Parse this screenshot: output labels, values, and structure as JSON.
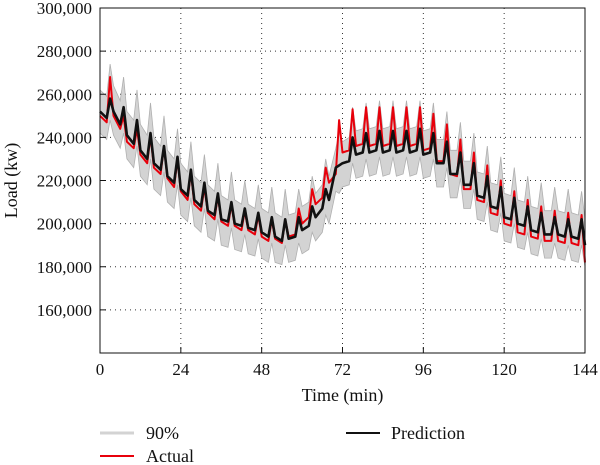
{
  "chart_data": {
    "type": "line",
    "xlabel": "Time (min)",
    "ylabel": "Load (kw)",
    "xlim": [
      0,
      144
    ],
    "ylim": [
      140000,
      300000
    ],
    "x_ticks": [
      0,
      24,
      48,
      72,
      96,
      120,
      144
    ],
    "x_tick_labels": [
      "0",
      "24",
      "48",
      "72",
      "96",
      "120",
      "144"
    ],
    "y_ticks": [
      160000,
      180000,
      200000,
      220000,
      240000,
      260000,
      280000,
      300000
    ],
    "y_tick_labels": [
      "160,000",
      "180,000",
      "200,000",
      "220,000",
      "240,000",
      "260,000",
      "280,000",
      "300,000"
    ],
    "grid": {
      "vertical": true,
      "horizontal": true,
      "style": "dotted"
    },
    "legend_position": "bottom",
    "x": [
      0,
      2,
      3,
      4,
      6,
      7,
      8,
      10,
      11,
      12,
      14,
      15,
      16,
      18,
      19,
      20,
      22,
      23,
      24,
      26,
      27,
      28,
      30,
      31,
      32,
      34,
      35,
      36,
      38,
      39,
      40,
      42,
      43,
      44,
      46,
      47,
      48,
      50,
      51,
      52,
      54,
      55,
      56,
      58,
      59,
      60,
      62,
      63,
      64,
      66,
      67,
      68,
      70,
      71,
      72,
      74,
      75,
      76,
      78,
      79,
      80,
      82,
      83,
      84,
      86,
      87,
      88,
      90,
      91,
      92,
      94,
      95,
      96,
      98,
      99,
      100,
      102,
      103,
      104,
      106,
      107,
      108,
      110,
      111,
      112,
      114,
      115,
      116,
      118,
      119,
      120,
      122,
      123,
      124,
      126,
      127,
      128,
      130,
      131,
      132,
      134,
      135,
      136,
      138,
      139,
      140,
      142,
      143,
      144
    ],
    "series": [
      {
        "name": "Actual",
        "color": "#e8000b",
        "values": [
          250000,
          247000,
          268000,
          250000,
          244000,
          250000,
          238000,
          235000,
          244000,
          232000,
          228000,
          241000,
          226000,
          223000,
          236000,
          221000,
          217000,
          230000,
          215000,
          211000,
          224000,
          209000,
          206000,
          217000,
          205000,
          202000,
          213000,
          201000,
          199000,
          209000,
          199000,
          197000,
          206000,
          197000,
          195000,
          204000,
          194000,
          192000,
          202000,
          193000,
          191000,
          202000,
          194000,
          195000,
          207000,
          200000,
          203000,
          216000,
          209000,
          212000,
          226000,
          219000,
          223000,
          248000,
          233000,
          234000,
          253000,
          236000,
          237000,
          254000,
          236000,
          237000,
          254000,
          236000,
          237000,
          254000,
          236000,
          237000,
          254000,
          236000,
          237000,
          254000,
          234000,
          235000,
          251000,
          229000,
          229000,
          246000,
          223000,
          222000,
          239000,
          216000,
          216000,
          233000,
          211000,
          210000,
          227000,
          205000,
          204000,
          220000,
          200000,
          199000,
          215000,
          196000,
          195000,
          211000,
          194000,
          193000,
          208000,
          192000,
          192000,
          206000,
          192000,
          191000,
          205000,
          191000,
          190000,
          204000,
          182000
        ]
      },
      {
        "name": "Prediction",
        "color": "#111111",
        "values": [
          252000,
          249000,
          258000,
          252000,
          246000,
          254000,
          241000,
          237000,
          248000,
          234000,
          230000,
          242000,
          228000,
          225000,
          236000,
          222000,
          219000,
          231000,
          216000,
          213000,
          225000,
          211000,
          208000,
          219000,
          206000,
          204000,
          214000,
          202000,
          201000,
          210000,
          200000,
          199000,
          207000,
          198000,
          197000,
          205000,
          196000,
          194000,
          203000,
          194000,
          192000,
          202000,
          193000,
          194000,
          203000,
          197000,
          199000,
          208000,
          203000,
          207000,
          216000,
          211000,
          226000,
          227000,
          228000,
          229000,
          240000,
          232000,
          233000,
          242000,
          233000,
          234000,
          243000,
          233000,
          234000,
          243000,
          233000,
          234000,
          243000,
          233000,
          234000,
          244000,
          232000,
          233000,
          242000,
          228000,
          228000,
          238000,
          223000,
          223000,
          233000,
          218000,
          218000,
          228000,
          213000,
          212000,
          222000,
          208000,
          207000,
          217000,
          203000,
          202000,
          212000,
          200000,
          199000,
          208000,
          197000,
          196000,
          205000,
          195000,
          195000,
          203000,
          195000,
          194000,
          202000,
          194000,
          193000,
          202000,
          190000
        ]
      }
    ],
    "band": {
      "name": "90%",
      "color": "#d3d3d3",
      "upper": [
        262000,
        259000,
        274000,
        264000,
        257000,
        268000,
        252000,
        248000,
        262000,
        246000,
        241000,
        256000,
        240000,
        236000,
        250000,
        234000,
        230000,
        244000,
        228000,
        224000,
        238000,
        222000,
        219000,
        232000,
        218000,
        215000,
        228000,
        213000,
        211000,
        224000,
        211000,
        209000,
        220000,
        209000,
        207000,
        218000,
        207000,
        205000,
        217000,
        205000,
        203000,
        216000,
        204000,
        205000,
        216000,
        208000,
        210000,
        222000,
        214000,
        218000,
        230000,
        222000,
        235000,
        242000,
        238000,
        240000,
        254000,
        243000,
        244000,
        256000,
        244000,
        245000,
        257000,
        244000,
        245000,
        257000,
        244000,
        245000,
        257000,
        244000,
        245000,
        257000,
        243000,
        244000,
        256000,
        239000,
        239000,
        252000,
        234000,
        234000,
        247000,
        229000,
        229000,
        242000,
        224000,
        223000,
        236000,
        219000,
        218000,
        231000,
        214000,
        213000,
        226000,
        211000,
        210000,
        222000,
        208000,
        207000,
        219000,
        206000,
        206000,
        217000,
        206000,
        205000,
        216000,
        205000,
        204000,
        215000,
        202000
      ],
      "lower": [
        242000,
        239000,
        248000,
        241000,
        235000,
        242000,
        230000,
        226000,
        236000,
        222000,
        218000,
        230000,
        216000,
        213000,
        224000,
        210000,
        207000,
        218000,
        204000,
        201000,
        212000,
        199000,
        196000,
        207000,
        194000,
        192000,
        202000,
        190000,
        189000,
        198000,
        188000,
        187000,
        195000,
        186000,
        185000,
        193000,
        184000,
        182000,
        191000,
        182000,
        181000,
        190000,
        182000,
        183000,
        191000,
        186000,
        188000,
        196000,
        192000,
        196000,
        204000,
        200000,
        215000,
        214000,
        217000,
        218000,
        228000,
        221000,
        222000,
        230000,
        222000,
        223000,
        231000,
        222000,
        223000,
        231000,
        222000,
        223000,
        231000,
        222000,
        223000,
        231000,
        221000,
        222000,
        230000,
        217000,
        217000,
        226000,
        212000,
        212000,
        221000,
        207000,
        207000,
        216000,
        202000,
        201000,
        210000,
        197000,
        196000,
        205000,
        192000,
        191000,
        200000,
        189000,
        188000,
        196000,
        186000,
        185000,
        193000,
        184000,
        184000,
        191000,
        184000,
        183000,
        190000,
        183000,
        182000,
        190000,
        180000
      ]
    },
    "legend": [
      {
        "label": "90%",
        "type": "band"
      },
      {
        "label": "Prediction",
        "type": "line"
      },
      {
        "label": "Actual",
        "type": "line"
      }
    ]
  }
}
